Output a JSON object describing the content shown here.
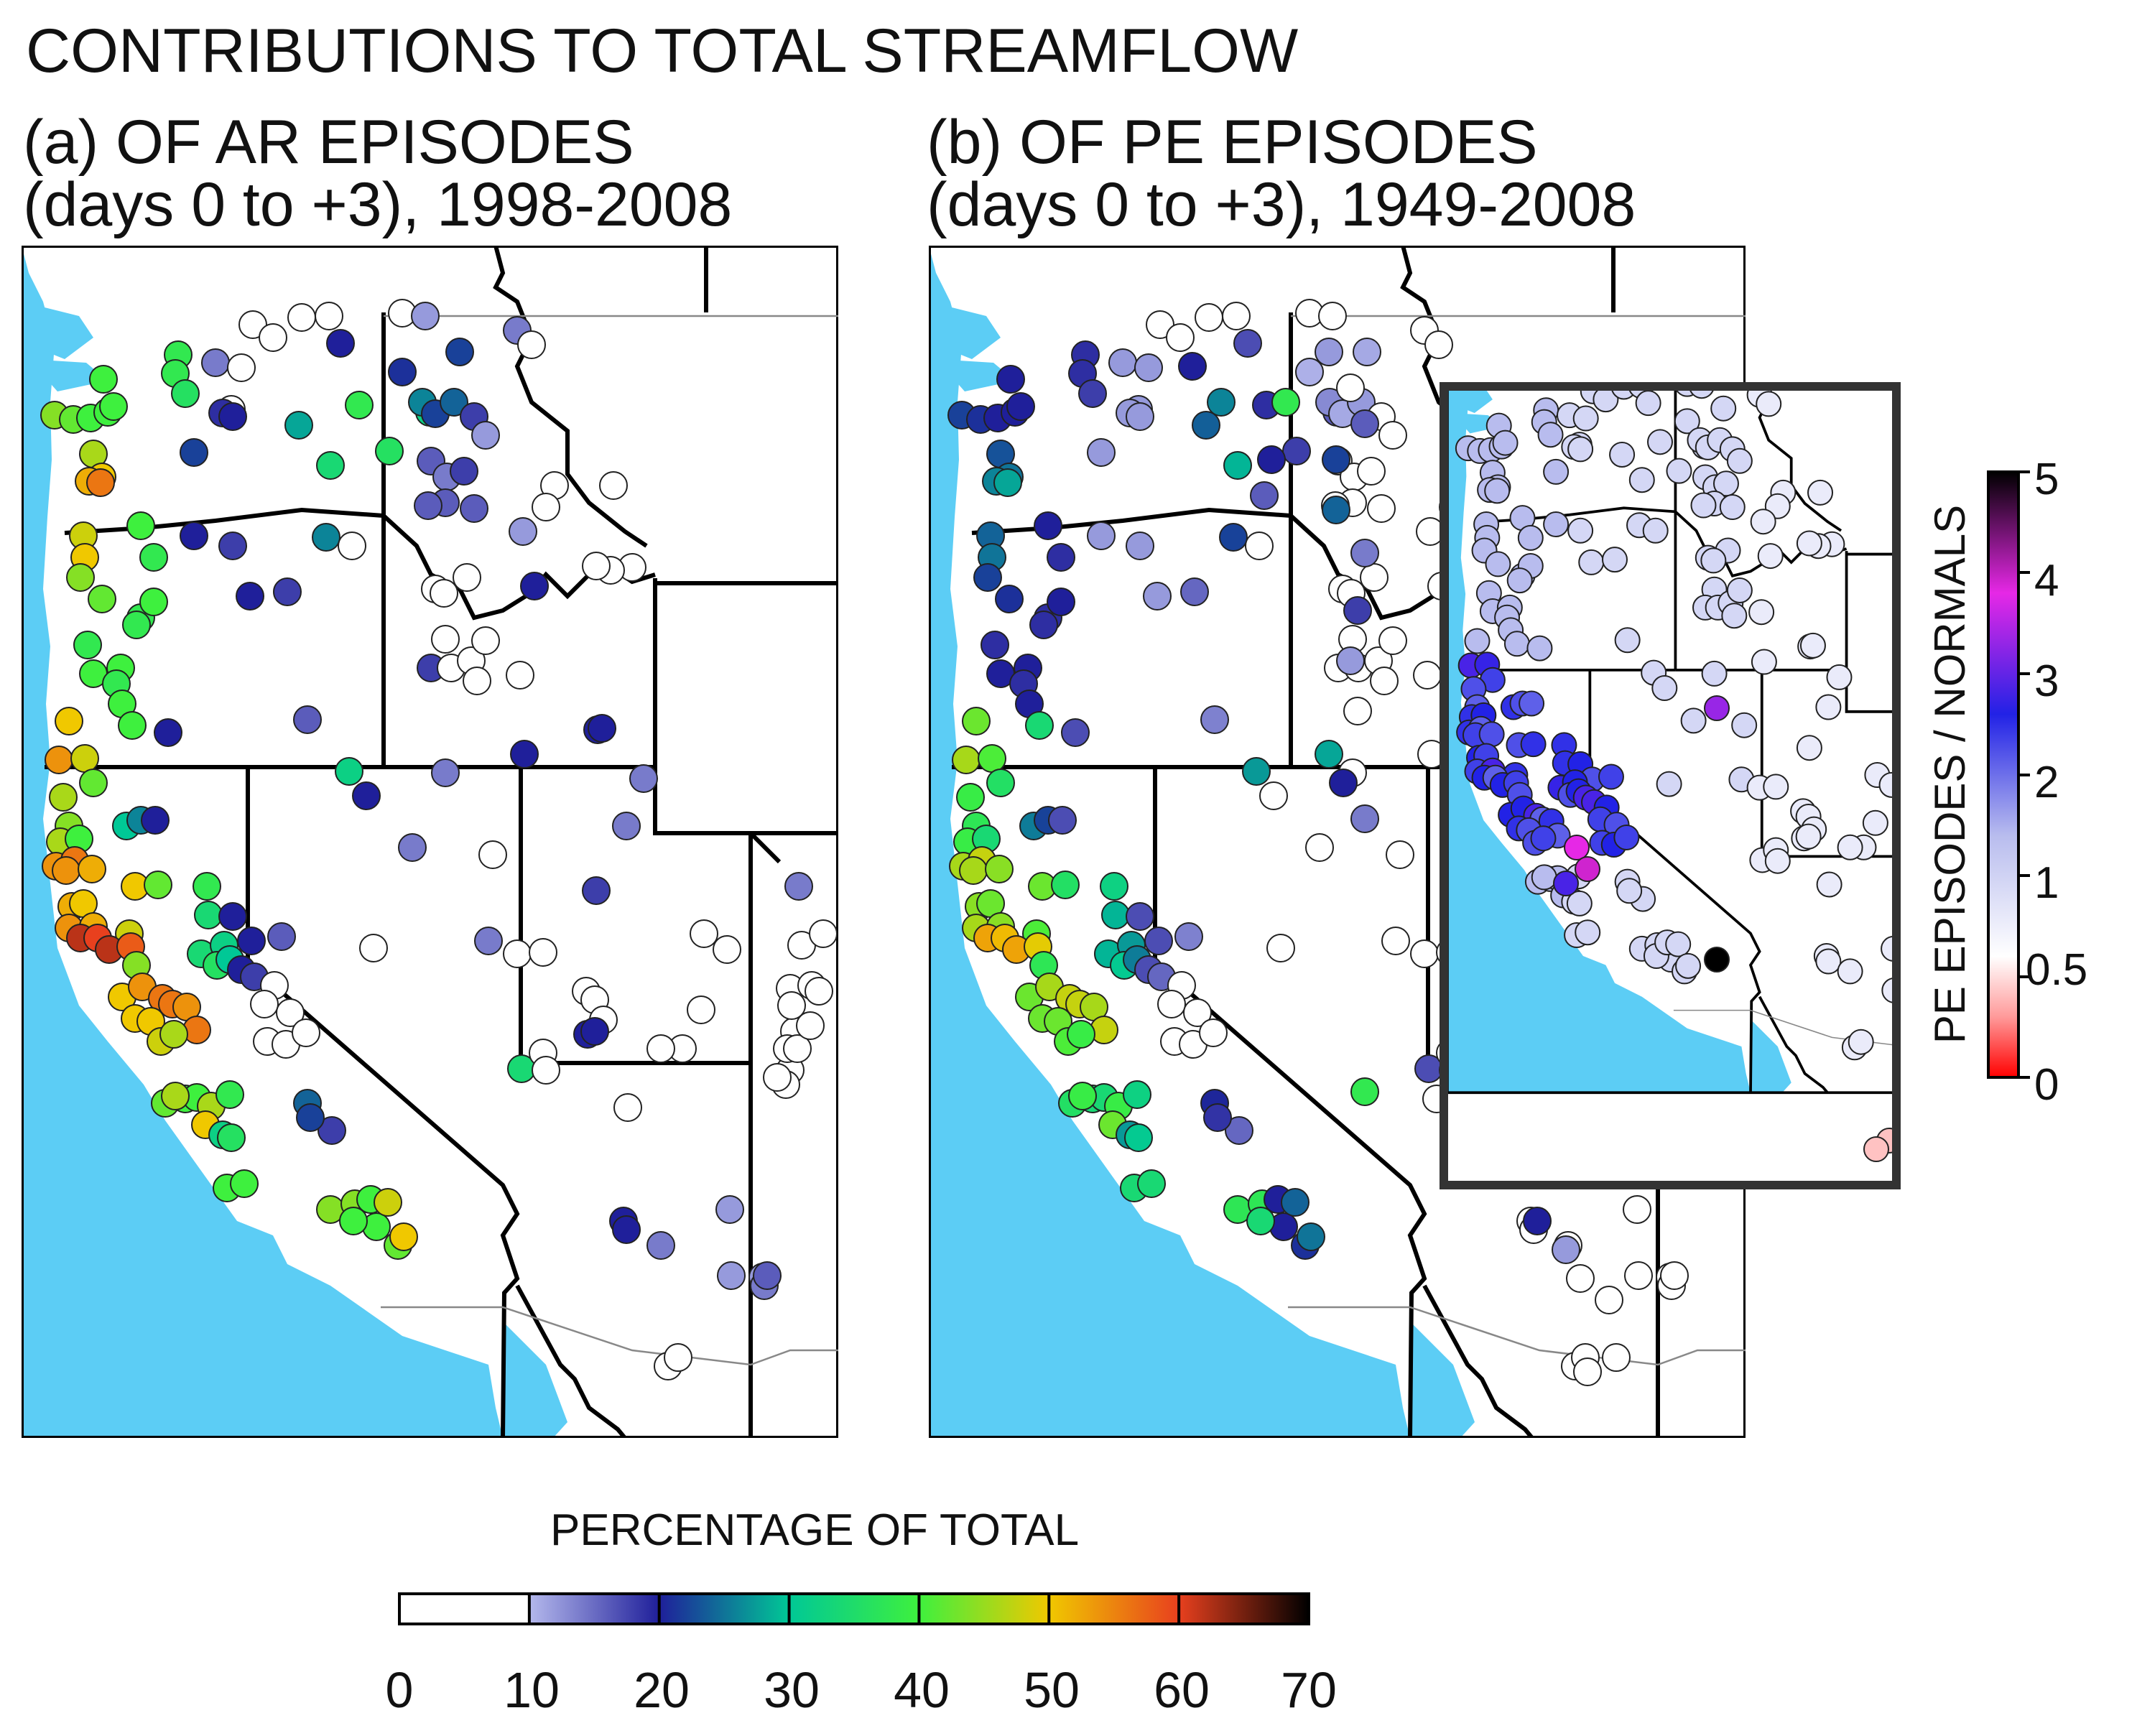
{
  "title": "CONTRIBUTIONS TO TOTAL STREAMFLOW",
  "panels": [
    {
      "label_line1": "(a) OF AR EPISODES",
      "label_line2": "(days 0 to +3), 1998-2008"
    },
    {
      "label_line1": "(b) OF PE EPISODES",
      "label_line2": "(days 0 to +3), 1949-2008"
    }
  ],
  "legend_bottom": {
    "title": "PERCENTAGE OF TOTAL",
    "ticks": [
      "0",
      "10",
      "20",
      "30",
      "40",
      "50",
      "60",
      "70"
    ],
    "colors": [
      "#ffffff",
      "#b4b8ec",
      "#1f1f9a",
      "#00c896",
      "#3ef03e",
      "#f0c800",
      "#e8401e",
      "#000000"
    ]
  },
  "legend_right": {
    "title": "PE EPISODES / NORMALS",
    "ticks": [
      "5",
      "4",
      "3",
      "2",
      "1",
      "0.5",
      "0"
    ],
    "colors": [
      "#000000",
      "#e628e6",
      "#2222e6",
      "#b8bcee",
      "#ffffff",
      "#ff9a9a",
      "#ff0000"
    ]
  },
  "colors": {
    "ocean": "#5ccdf5",
    "land": "#ffffff",
    "border": "#000000"
  }
}
